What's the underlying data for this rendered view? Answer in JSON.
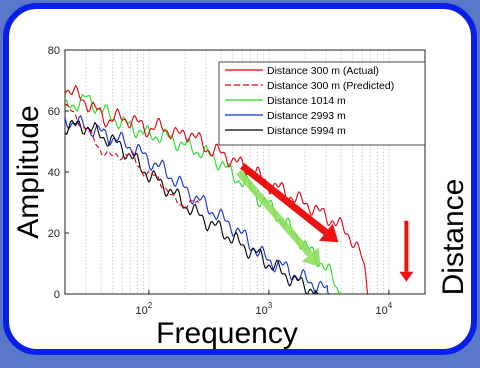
{
  "chart_data": {
    "type": "line",
    "xscale": "log",
    "xlim": [
      20,
      20000
    ],
    "ylim": [
      0,
      80
    ],
    "xlabel": "Frequency",
    "ylabel": "Amplitude",
    "side_label": "Distance",
    "grid": "vertical dotted",
    "legend_position": "top-right",
    "yticks": [
      {
        "value": 0,
        "label": "0"
      },
      {
        "value": 20,
        "label": "20"
      },
      {
        "value": 40,
        "label": "40"
      },
      {
        "value": 60,
        "label": "60"
      },
      {
        "value": 80,
        "label": "80"
      }
    ],
    "xticks": [
      {
        "value": 100,
        "base": "10",
        "exp": "2"
      },
      {
        "value": 1000,
        "base": "10",
        "exp": "3"
      },
      {
        "value": 10000,
        "base": "10",
        "exp": "4"
      }
    ],
    "series": [
      {
        "name": "Distance 300 m (Actual)",
        "color": "#e0000f",
        "dash": "solid",
        "x": [
          20,
          30,
          45,
          60,
          80,
          100,
          130,
          170,
          220,
          300,
          400,
          500,
          650,
          800,
          1000,
          1300,
          1700,
          2200,
          2800,
          3500,
          4200,
          5000,
          5800,
          6300,
          6700
        ],
        "y": [
          68,
          63,
          57,
          58,
          56,
          54,
          55,
          52,
          53,
          48,
          46,
          44,
          41,
          39,
          36,
          34,
          31,
          29,
          26,
          24,
          21,
          18,
          13,
          7,
          0
        ]
      },
      {
        "name": "Distance 300 m (Predicted)",
        "color": "#e0000f",
        "dash": "dashed",
        "x": [
          20,
          30,
          40,
          50,
          70,
          90,
          120,
          160,
          200,
          260
        ],
        "y": [
          62,
          54,
          47,
          45,
          46,
          40,
          38,
          31,
          29,
          30
        ]
      },
      {
        "name": "Distance 1014 m",
        "color": "#22dd22",
        "dash": "solid",
        "x": [
          20,
          30,
          45,
          60,
          80,
          100,
          130,
          170,
          220,
          300,
          400,
          500,
          650,
          800,
          1000,
          1300,
          1700,
          2200,
          2800,
          3300,
          3700,
          4000
        ],
        "y": [
          61,
          64,
          59,
          56,
          54,
          52,
          52,
          50,
          48,
          46,
          43,
          39,
          36,
          32,
          29,
          24,
          19,
          14,
          10,
          6,
          2,
          0
        ]
      },
      {
        "name": "Distance 2993 m",
        "color": "#1030d8",
        "dash": "solid",
        "x": [
          20,
          30,
          45,
          60,
          80,
          100,
          130,
          170,
          220,
          300,
          400,
          500,
          650,
          800,
          1000,
          1300,
          1700,
          2200,
          2800,
          3200
        ],
        "y": [
          57,
          55,
          52,
          50,
          47,
          44,
          41,
          37,
          33,
          29,
          25,
          22,
          18,
          14,
          11,
          9,
          6,
          4,
          2,
          0
        ]
      },
      {
        "name": "Distance 5994 m",
        "color": "#000000",
        "dash": "solid",
        "x": [
          20,
          30,
          45,
          60,
          80,
          100,
          130,
          170,
          220,
          300,
          400,
          500,
          650,
          800,
          1000,
          1300,
          1700,
          2200,
          2600
        ],
        "y": [
          55,
          55,
          51,
          48,
          43,
          39,
          36,
          32,
          28,
          24,
          21,
          18,
          15,
          13,
          10,
          7,
          4,
          2,
          0
        ]
      }
    ],
    "annotations": [
      {
        "name": "red-trend-arrow",
        "color": "#ee1111",
        "from": {
          "x": 600,
          "y": 42
        },
        "to": {
          "x": 3800,
          "y": 17
        }
      },
      {
        "name": "green-trend-arrow",
        "color": "#88dd55",
        "from": {
          "x": 560,
          "y": 40
        },
        "to": {
          "x": 2700,
          "y": 9
        }
      },
      {
        "name": "distance-arrow",
        "color": "#ee1111",
        "from": {
          "x": 14000,
          "y": 24
        },
        "to": {
          "x": 14000,
          "y": 4
        }
      }
    ]
  }
}
